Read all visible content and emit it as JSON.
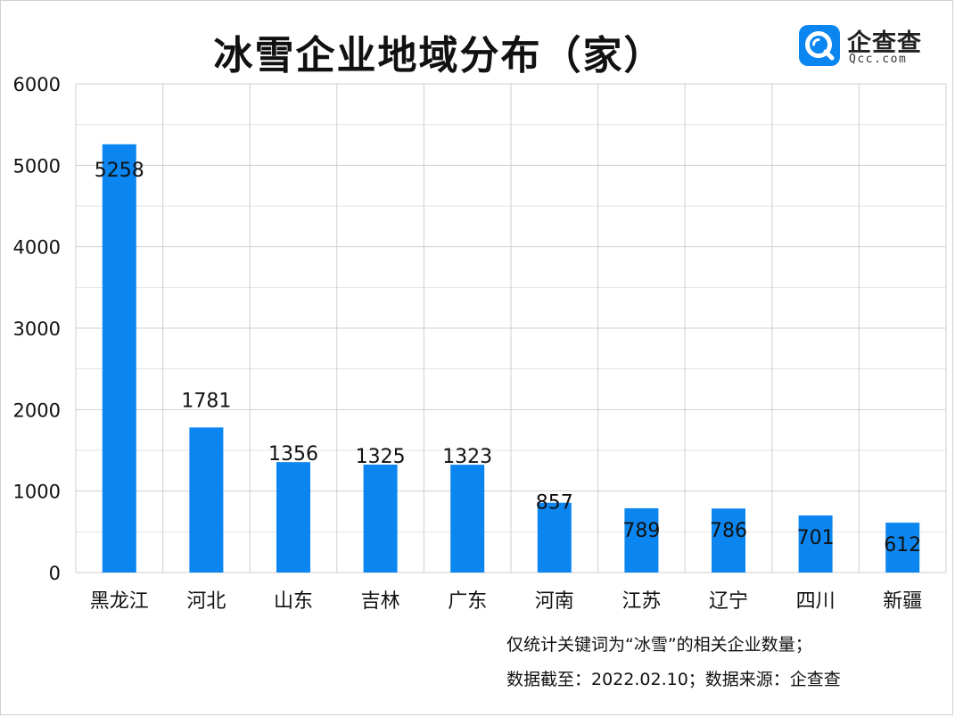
{
  "chart_data": {
    "type": "bar",
    "title": "冰雪企业地域分布（家）",
    "categories": [
      "黑龙江",
      "河北",
      "山东",
      "吉林",
      "广东",
      "河南",
      "江苏",
      "辽宁",
      "四川",
      "新疆"
    ],
    "values": [
      5258,
      1781,
      1356,
      1325,
      1323,
      857,
      789,
      786,
      701,
      612
    ],
    "ylim": [
      0,
      6000
    ],
    "yticks": [
      0,
      1000,
      2000,
      3000,
      4000,
      5000,
      6000
    ],
    "grid": true,
    "bar_color": "#0b86f0"
  },
  "logo": {
    "name": "企查查",
    "sub": "Qcc.com",
    "color": "#0b86f0"
  },
  "footer": {
    "note": "仅统计关键词为“冰雪”的相关企业数量；",
    "source": "数据截至：2022.02.10；数据来源：企查查"
  }
}
